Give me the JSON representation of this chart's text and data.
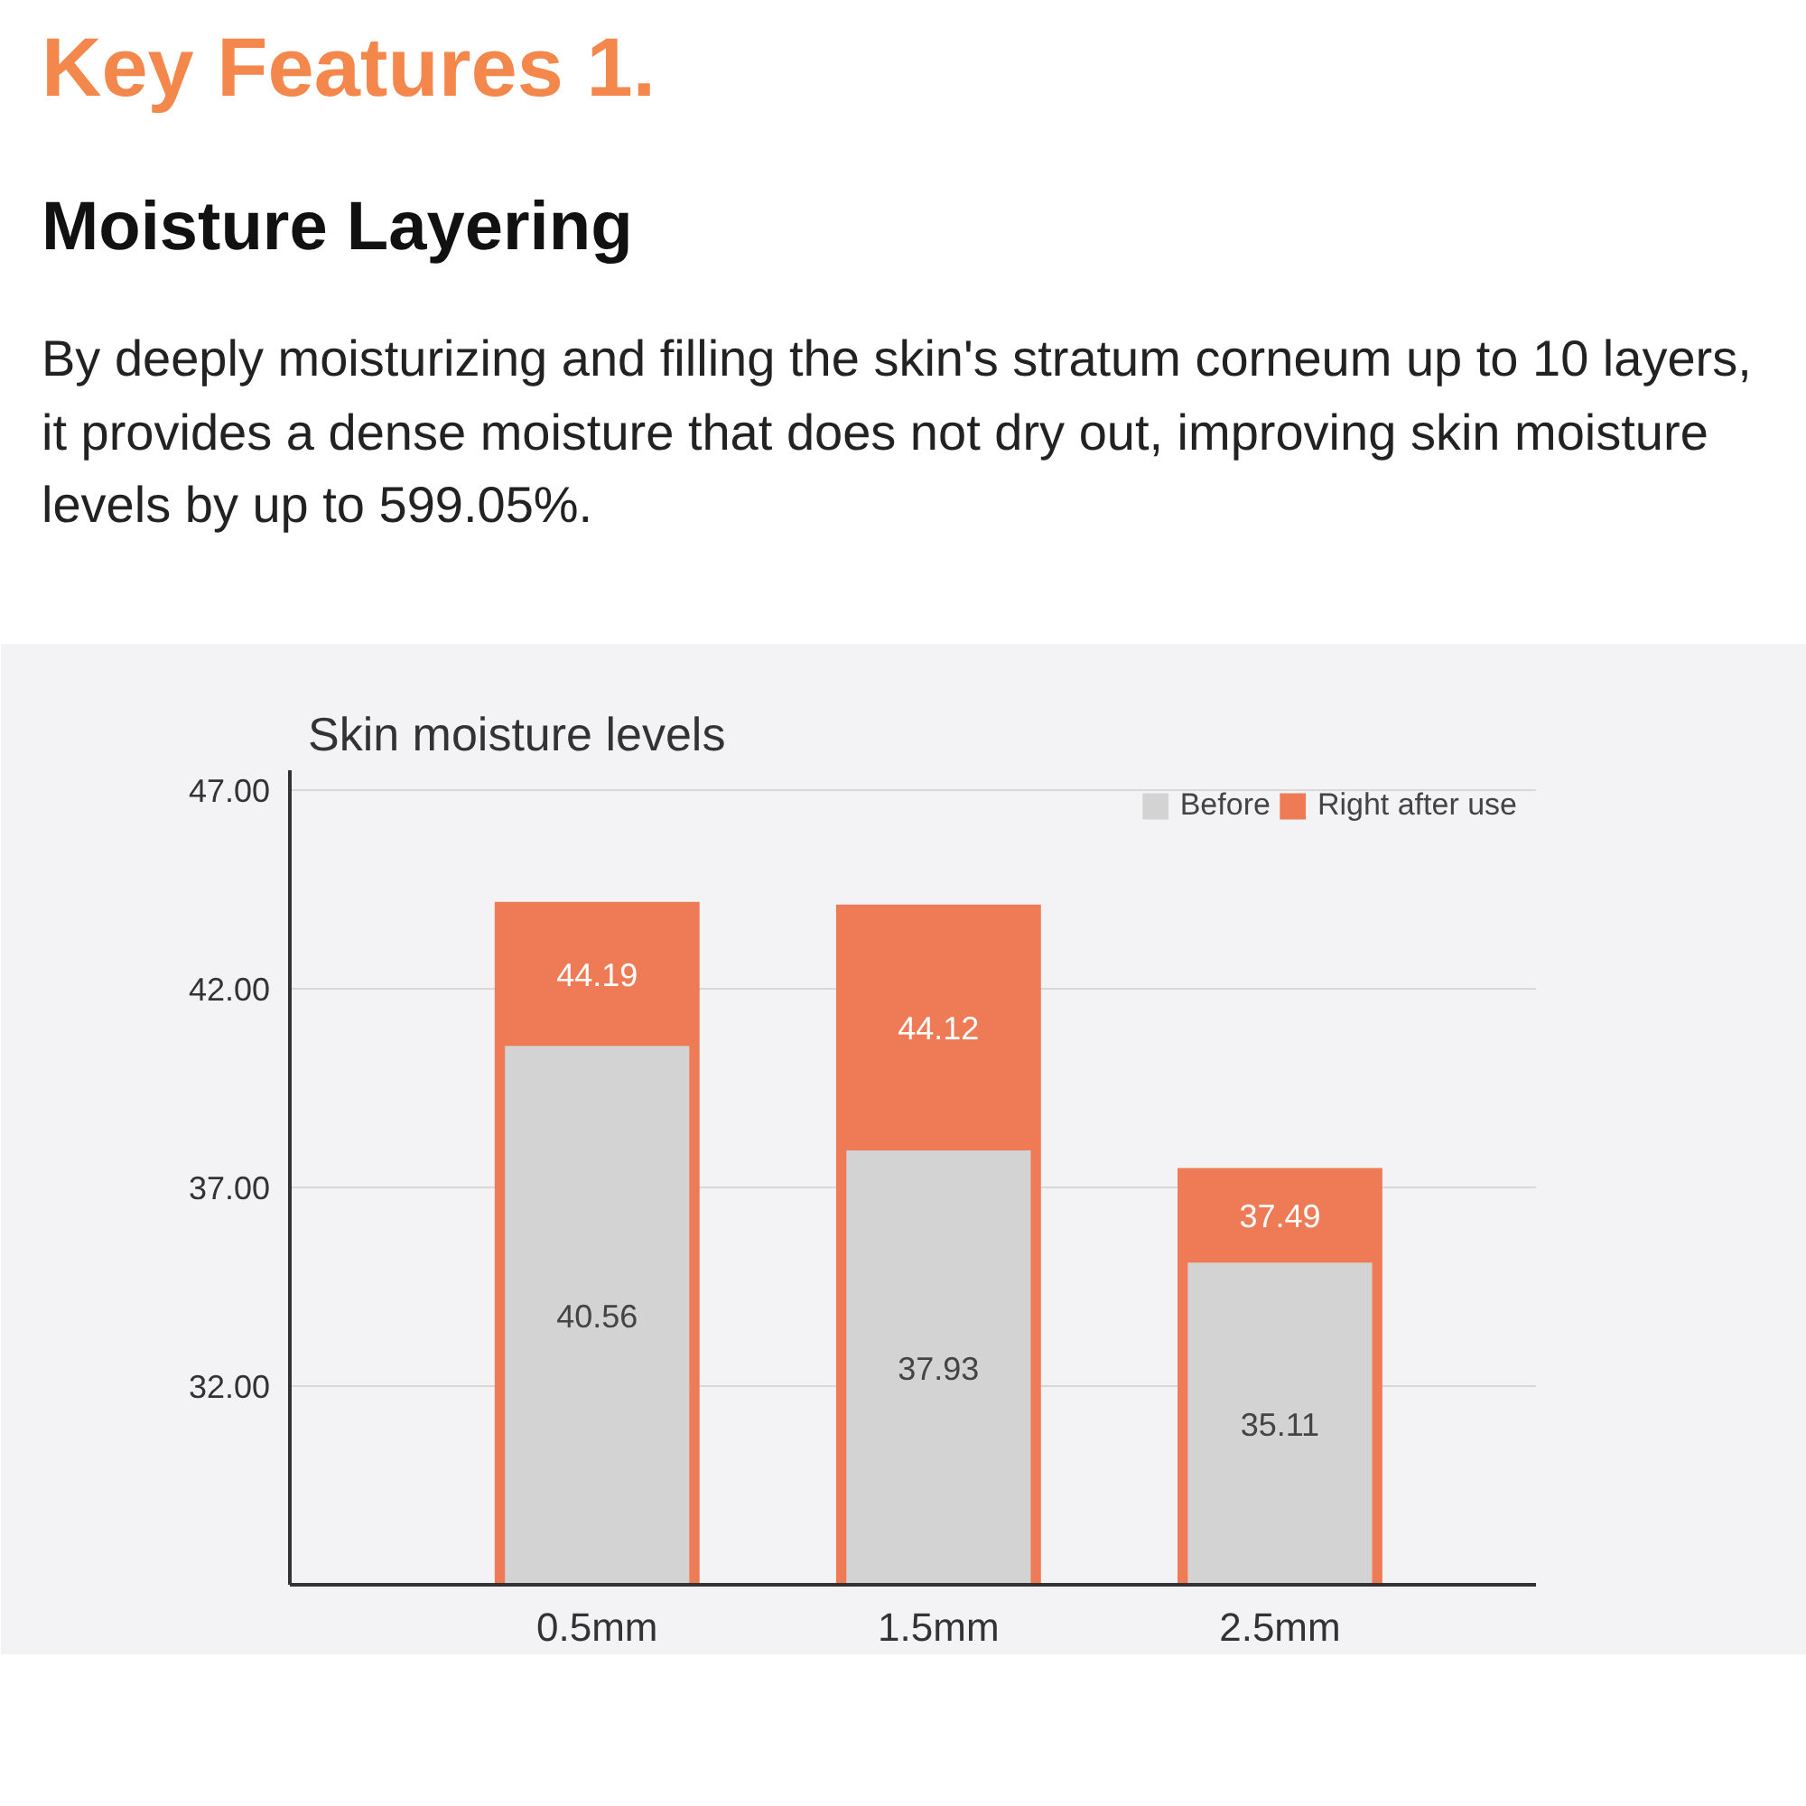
{
  "chart_data": {
    "type": "bar",
    "title": "Skin moisture levels",
    "annotations": [
      "Key Features 1.",
      "Moisture Layering",
      "By deeply moisturizing and filling the skin's stratum corneum up to 10 layers, it provides a dense moisture that does not dry out, improving skin moisture levels by up to 599.05%."
    ],
    "categories": [
      "0.5mm",
      "1.5mm",
      "2.5mm"
    ],
    "data_labels": true,
    "series": [
      {
        "name": "Before",
        "color": "#d3d3d3",
        "values": [
          40.56,
          37.93,
          35.11
        ]
      },
      {
        "name": "Right after use",
        "color": "#ee7b56",
        "values": [
          44.19,
          44.12,
          37.49
        ]
      }
    ],
    "ylim": [
      27,
      47.5
    ],
    "yticks": [
      {
        "value": 32,
        "label": "32.00"
      },
      {
        "value": 37,
        "label": "37.00"
      },
      {
        "value": 42,
        "label": "42.00"
      },
      {
        "value": 47,
        "label": "47.00"
      }
    ],
    "grid": "y",
    "legend": "top right"
  }
}
